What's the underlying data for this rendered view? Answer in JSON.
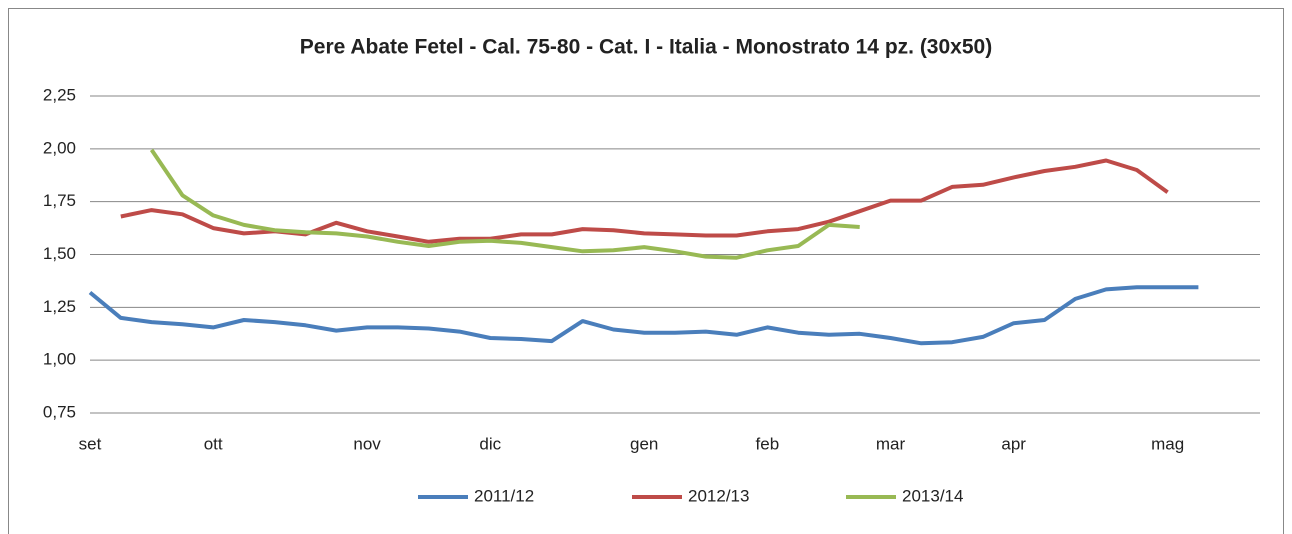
{
  "chart_data": {
    "type": "line",
    "title": "Pere Abate Fetel - Cal. 75-80 - Cat. I - Italia - Monostrato 14 pz. (30x50)",
    "categories": [
      "set",
      null,
      null,
      null,
      "ott",
      null,
      null,
      null,
      null,
      "nov",
      null,
      null,
      null,
      "dic",
      null,
      null,
      null,
      null,
      "gen",
      null,
      null,
      null,
      "feb",
      null,
      null,
      null,
      "mar",
      null,
      null,
      null,
      "apr",
      null,
      null,
      null,
      null,
      "mag",
      null,
      null,
      null
    ],
    "series": [
      {
        "name": "2011/12",
        "color": "#4a7ebb",
        "values": [
          1.32,
          1.2,
          1.18,
          1.17,
          1.155,
          1.19,
          1.18,
          1.165,
          1.14,
          1.155,
          1.155,
          1.15,
          1.135,
          1.105,
          1.1,
          1.09,
          1.185,
          1.145,
          1.13,
          1.13,
          1.135,
          1.12,
          1.155,
          1.13,
          1.12,
          1.125,
          1.105,
          1.08,
          1.085,
          1.11,
          1.175,
          1.19,
          1.29,
          1.335,
          1.345,
          1.345,
          1.345,
          null,
          null
        ]
      },
      {
        "name": "2012/13",
        "color": "#be4b48",
        "values": [
          null,
          1.68,
          1.71,
          1.69,
          1.625,
          1.6,
          1.61,
          1.595,
          1.65,
          1.61,
          1.585,
          1.56,
          1.575,
          1.575,
          1.595,
          1.595,
          1.62,
          1.615,
          1.6,
          1.595,
          1.59,
          1.59,
          1.61,
          1.62,
          1.655,
          1.705,
          1.755,
          1.755,
          1.82,
          1.83,
          1.865,
          1.895,
          1.915,
          1.945,
          1.9,
          1.795,
          null,
          null,
          null
        ]
      },
      {
        "name": "2013/14",
        "color": "#98b954",
        "values": [
          null,
          null,
          1.995,
          1.78,
          1.685,
          1.64,
          1.615,
          1.605,
          1.6,
          1.585,
          1.56,
          1.54,
          1.56,
          1.565,
          1.555,
          1.535,
          1.515,
          1.52,
          1.535,
          1.515,
          1.49,
          1.485,
          1.52,
          1.54,
          1.64,
          1.63,
          null,
          null,
          null,
          null,
          null,
          null,
          null,
          null,
          null,
          null,
          null,
          null,
          null
        ]
      }
    ],
    "ylim": [
      0.75,
      2.25
    ],
    "yticks": [
      {
        "value": 0.75,
        "label": "0,75"
      },
      {
        "value": 1.0,
        "label": "1,00"
      },
      {
        "value": 1.25,
        "label": "1,25"
      },
      {
        "value": 1.5,
        "label": "1,50"
      },
      {
        "value": 1.75,
        "label": "1,75"
      },
      {
        "value": 2.0,
        "label": "2,00"
      },
      {
        "value": 2.25,
        "label": "2,25"
      }
    ],
    "grid": true,
    "legend": "bottom"
  }
}
